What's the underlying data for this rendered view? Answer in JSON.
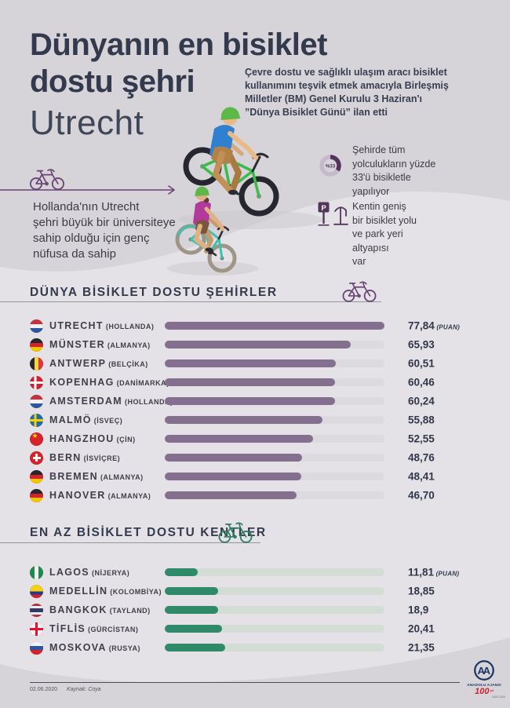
{
  "header": {
    "title_line1": "Dünyanın en bisiklet",
    "title_line2": "dostu şehri",
    "title_city": "Utrecht",
    "intro": "Çevre dostu ve sağlıklı ulaşım aracı bisiklet\nkullanımını teşvik etmek amacıyla Birleşmiş\nMilletler (BM) Genel Kurulu 3 Haziran'ı\n”Dünya Bisiklet Günü” ilan etti"
  },
  "facts": {
    "left_note": "Hollanda'nın Utrecht\nşehri büyük bir üniversiteye\nsahip olduğu için genç\nnüfusa da sahip",
    "share": {
      "label": "%33",
      "percent": 33,
      "text": "Şehirde tüm\nyolculukların yüzde\n33'ü bisikletle\nyapılıyor"
    },
    "parking": {
      "sign": "P",
      "text": "Kentin geniş\nbir bisiklet yolu\nve park yeri\naltyapısı\nvar"
    }
  },
  "colors": {
    "background": "#d6d4d8",
    "swoosh": "#e4e2e6",
    "navy": "#333a4d",
    "purple_accent": "#6b4576",
    "purple_bar": "#84708e",
    "green_accent": "#2d7c5e",
    "green_bar": "#2e8a69"
  },
  "chart_data": [
    {
      "type": "bar",
      "title": "DÜNYA BİSİKLET DOSTU ŞEHİRLER",
      "unit": "PUAN",
      "xlim": [
        0,
        77.84
      ],
      "bar_color": "#84708e",
      "legend_position": "none",
      "grid": false,
      "rows": [
        {
          "city": "UTRECHT",
          "country": "(HOLLANDA)",
          "flag": "nl",
          "label": "77,84",
          "value": 77.84,
          "suffix": "(PUAN)"
        },
        {
          "city": "MÜNSTER",
          "country": "(ALMANYA)",
          "flag": "de",
          "label": "65,93",
          "value": 65.93
        },
        {
          "city": "ANTWERP",
          "country": "(BELÇİKA)",
          "flag": "be",
          "label": "60,51",
          "value": 60.51
        },
        {
          "city": "KOPENHAG",
          "country": "(DANİMARKA)",
          "flag": "dk",
          "label": "60,46",
          "value": 60.46
        },
        {
          "city": "AMSTERDAM",
          "country": "(HOLLANDA)",
          "flag": "nl",
          "label": "60,24",
          "value": 60.24
        },
        {
          "city": "MALMÖ",
          "country": "(İSVEÇ)",
          "flag": "se",
          "label": "55,88",
          "value": 55.88
        },
        {
          "city": "HANGZHOU",
          "country": "(ÇİN)",
          "flag": "cn",
          "label": "52,55",
          "value": 52.55
        },
        {
          "city": "BERN",
          "country": "(İSVİÇRE)",
          "flag": "ch",
          "label": "48,76",
          "value": 48.76
        },
        {
          "city": "BREMEN",
          "country": "(ALMANYA)",
          "flag": "de",
          "label": "48,41",
          "value": 48.41
        },
        {
          "city": "HANOVER",
          "country": "(ALMANYA)",
          "flag": "de",
          "label": "46,70",
          "value": 46.7
        }
      ]
    },
    {
      "type": "bar",
      "title": "EN AZ BİSİKLET DOSTU KENTLER",
      "unit": "PUAN",
      "xlim": [
        0,
        77.84
      ],
      "bar_color": "#2e8a69",
      "legend_position": "none",
      "grid": false,
      "rows": [
        {
          "city": "LAGOS",
          "country": "(NİJERYA)",
          "flag": "ng",
          "label": "11,81",
          "value": 11.81,
          "suffix": "(PUAN)"
        },
        {
          "city": "MEDELLİN",
          "country": "(KOLOMBİYA)",
          "flag": "co",
          "label": "18,85",
          "value": 18.85
        },
        {
          "city": "BANGKOK",
          "country": "(TAYLAND)",
          "flag": "th",
          "label": "18,9",
          "value": 18.9
        },
        {
          "city": "TİFLİS",
          "country": "(GÜRCİSTAN)",
          "flag": "ge",
          "label": "20,41",
          "value": 20.41
        },
        {
          "city": "MOSKOVA",
          "country": "(RUSYA)",
          "flag": "ru",
          "label": "21,35",
          "value": 21.35
        }
      ]
    }
  ],
  "footer": {
    "date": "02.06.2020",
    "source": "Kaynak: Coya",
    "logo": {
      "monogram": "AA",
      "name": "ANADOLU AJANSI",
      "centennial": "100",
      "centennial_suffix": "yıl",
      "years": "1920-2020"
    }
  }
}
